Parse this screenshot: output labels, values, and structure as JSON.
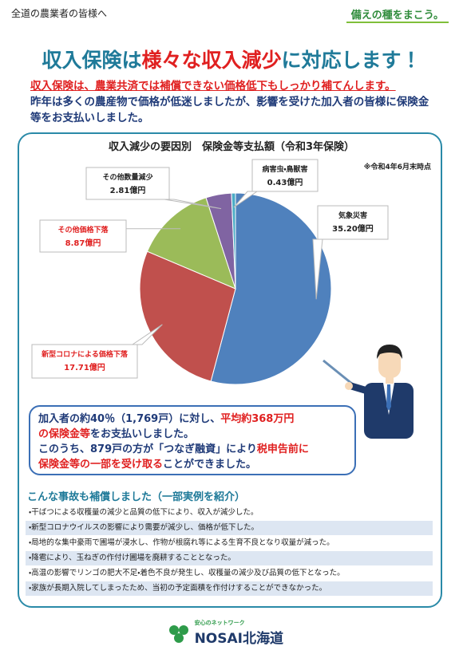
{
  "header": {
    "greeting": "全道の農業者の皆様へ",
    "slogan": "備えの種をまこう。"
  },
  "title": [
    "収入保険は",
    "様々な",
    "収入減少",
    "に対応します！"
  ],
  "lead": {
    "highlight": "収入保険は、農業共済では補償できない価格低下もしっかり補てんします。",
    "body": "昨年は多くの農産物で価格が低迷しましたが、影響を受けた加入者の皆様に保険金等をお支払いしました。"
  },
  "chart_data": {
    "type": "pie",
    "title": "収入減少の要因別　保険金等支払額（令和3年保険）",
    "note": "※令和4年6月末時点",
    "categories": [
      "気象災害",
      "新型コロナによる価格下落",
      "その他価格下落",
      "その他数量減少",
      "病害虫・鳥獣害"
    ],
    "values": [
      35.2,
      17.71,
      8.87,
      2.81,
      0.43
    ],
    "value_labels": [
      "35.20億円",
      "17.71億円",
      "8.87億円",
      "2.81億円",
      "0.43億円"
    ],
    "colors": [
      "#4f81bd",
      "#c0504d",
      "#9bbb59",
      "#8064a2",
      "#4bacc6"
    ]
  },
  "callout": [
    "加入者の約40％（1,769戸）に対し、",
    "平均約368万円",
    "の保険金等",
    "をお支払いしました。",
    "このうち、879戸の方が「つなぎ融資」により",
    "税申告前に",
    "保険金等の一部を受け取る",
    "ことができました。"
  ],
  "examples": {
    "heading": "こんな事故も補償しました（一部実例を紹介）",
    "items": [
      "・干ばつによる収穫量の減少と品質の低下により、収入が減少した。",
      "・新型コロナウイルスの影響により需要が減少し、価格が低下した。",
      "・局地的な集中豪雨で圃場が浸水し、作物が根腐れ等による生育不良となり収量が減った。",
      "・降雹により、玉ねぎの作付け圃場を廃耕することとなった。",
      "・高温の影響でリンゴの肥大不足・着色不良が発生し、収穫量の減少及び品質の低下となった。",
      "・家族が長期入院してしまったため、当初の予定面積を作付けすることができなかった。"
    ]
  },
  "footer": {
    "tagline": "安心のネットワーク",
    "logo": "NOSAI北海道"
  }
}
